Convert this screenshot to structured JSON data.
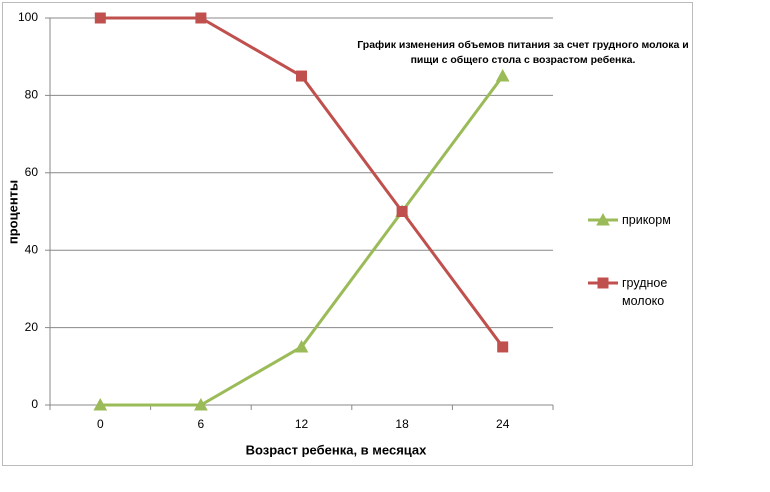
{
  "chart_data": {
    "type": "line",
    "title": "График изменения объемов питания за счет грудного молока и пищи с общего стола с возрастом ребенка.",
    "x_label": "Возраст ребенка, в месяцах",
    "y_label": "проценты",
    "categories": [
      "0",
      "6",
      "12",
      "18",
      "24"
    ],
    "series": [
      {
        "name": "прикорм",
        "color": "#9bbb59",
        "marker": "triangle",
        "values": [
          0,
          0,
          15,
          50,
          85
        ]
      },
      {
        "name": "грудное молоко",
        "color": "#c0504d",
        "marker": "square",
        "values": [
          100,
          100,
          85,
          50,
          15
        ]
      }
    ],
    "ylim": [
      0,
      100
    ],
    "yticks": [
      0,
      20,
      40,
      60,
      80,
      100
    ],
    "grid": true,
    "legend": "right"
  }
}
